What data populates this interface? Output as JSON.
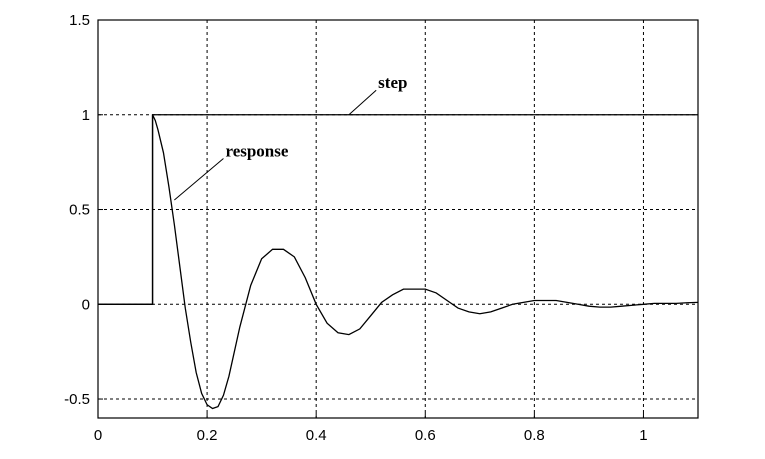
{
  "chart_data": {
    "type": "line",
    "title": "",
    "xlabel": "",
    "ylabel": "",
    "xlim": [
      0,
      1.1
    ],
    "ylim": [
      -0.6,
      1.5
    ],
    "grid": true,
    "x_ticks": [
      0,
      0.2,
      0.4,
      0.6,
      0.8,
      1
    ],
    "x_tick_labels": [
      "0",
      "0.2",
      "0.4",
      "0.6",
      "0.8",
      "1"
    ],
    "y_ticks": [
      -0.5,
      0,
      0.5,
      1,
      1.5
    ],
    "y_tick_labels": [
      "-0.5",
      "0",
      "0.5",
      "1",
      "1.5"
    ],
    "series": [
      {
        "name": "step",
        "x": [
          0,
          0.1,
          0.1,
          1.1
        ],
        "y": [
          0,
          0,
          1,
          1
        ]
      },
      {
        "name": "response",
        "x": [
          0,
          0.1,
          0.1,
          0.105,
          0.11,
          0.12,
          0.13,
          0.14,
          0.15,
          0.16,
          0.17,
          0.18,
          0.19,
          0.2,
          0.21,
          0.22,
          0.23,
          0.24,
          0.26,
          0.28,
          0.3,
          0.32,
          0.34,
          0.36,
          0.38,
          0.4,
          0.42,
          0.44,
          0.46,
          0.48,
          0.5,
          0.52,
          0.54,
          0.56,
          0.58,
          0.6,
          0.62,
          0.64,
          0.66,
          0.68,
          0.7,
          0.72,
          0.74,
          0.76,
          0.78,
          0.8,
          0.82,
          0.84,
          0.86,
          0.88,
          0.9,
          0.92,
          0.94,
          0.96,
          0.98,
          1.0,
          1.02,
          1.04,
          1.06,
          1.08,
          1.1
        ],
        "y": [
          0,
          0,
          1,
          0.97,
          0.92,
          0.8,
          0.62,
          0.42,
          0.2,
          -0.02,
          -0.2,
          -0.36,
          -0.47,
          -0.53,
          -0.55,
          -0.54,
          -0.48,
          -0.38,
          -0.12,
          0.1,
          0.24,
          0.29,
          0.29,
          0.25,
          0.14,
          0.0,
          -0.1,
          -0.15,
          -0.16,
          -0.13,
          -0.06,
          0.01,
          0.05,
          0.08,
          0.08,
          0.08,
          0.06,
          0.02,
          -0.02,
          -0.04,
          -0.05,
          -0.04,
          -0.02,
          0.0,
          0.01,
          0.02,
          0.02,
          0.02,
          0.01,
          0.0,
          -0.01,
          -0.015,
          -0.015,
          -0.01,
          -0.005,
          0.0,
          0.005,
          0.005,
          0.005,
          0.008,
          0.01
        ]
      }
    ],
    "annotations": [
      {
        "text": "step",
        "series": "step",
        "at": [
          0.46,
          1.0
        ],
        "label_pos": [
          0.51,
          1.14
        ]
      },
      {
        "text": "response",
        "series": "response",
        "at": [
          0.14,
          0.55
        ],
        "label_pos": [
          0.23,
          0.78
        ]
      }
    ]
  }
}
